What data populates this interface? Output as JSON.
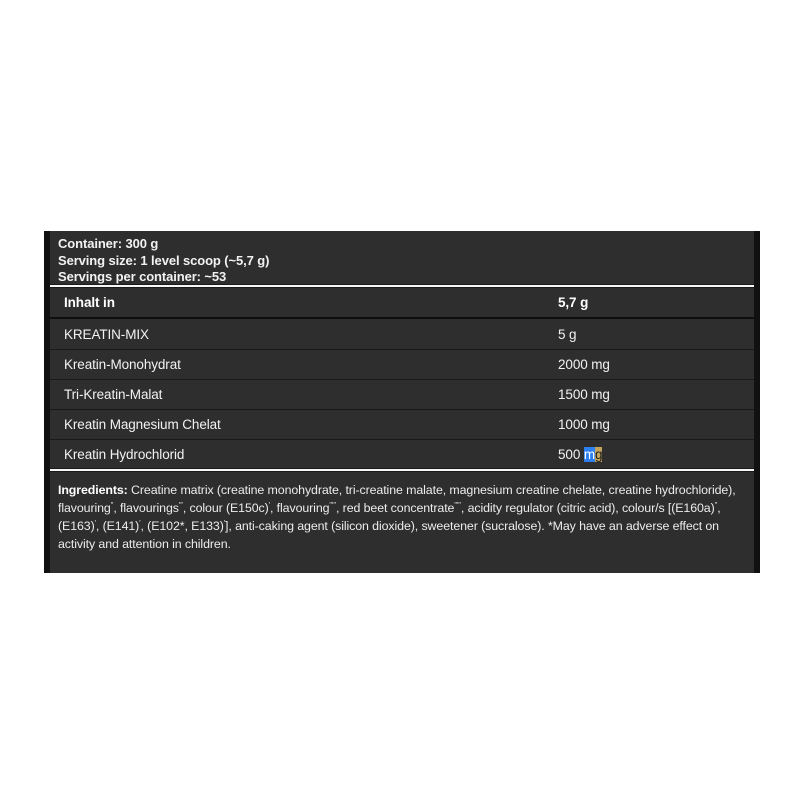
{
  "page": {
    "background": "#ffffff"
  },
  "label": {
    "colors": {
      "background": "#2e2e2e",
      "border": "#111111",
      "divider": "#f7f7f7",
      "text": "#f2f2f2",
      "selection_bg": "#2e80f0",
      "selection_fg": "#ffffff",
      "match_bg": "#c2a35c",
      "match_fg": "#1c1c1c"
    },
    "info": {
      "container": "Container: 300 g",
      "serving_size": "Serving size: 1 level scoop (~5,7 g)",
      "servings_per_container": "Servings per container: ~53"
    },
    "table": {
      "header": {
        "name": "Inhalt in",
        "value": "5,7 g"
      },
      "rows": [
        {
          "name": "KREATIN-MIX",
          "value": "5 g"
        },
        {
          "name": "Kreatin-Monohydrat",
          "value": "2000 mg"
        },
        {
          "name": "Tri-Kreatin-Malat",
          "value": "1500 mg"
        },
        {
          "name": "Kreatin Magnesium Chelat",
          "value": "1000 mg"
        },
        {
          "name": "Kreatin Hydrochlorid",
          "value": "500 mg",
          "highlight": {
            "prefix": "500 ",
            "selected_text": "m",
            "match_text": "g"
          }
        }
      ]
    },
    "ingredients": {
      "label": "Ingredients:",
      "segments": [
        {
          "t": " Creatine matrix (creatine monohydrate, tri-creatine malate, magnesium creatine chelate, creatine hydrochloride), flavouring",
          "s": "′′"
        },
        {
          "t": ", flavourings",
          "s": "′′′"
        },
        {
          "t": ", colour (E150c)",
          "s": "′"
        },
        {
          "t": ", flavouring",
          "s": "′′′′′"
        },
        {
          "t": ", red beet concentrate",
          "s": "′′′′′"
        },
        {
          "t": ", acidity regulator (citric acid), colour/s [(E160a)",
          "s": "′′"
        },
        {
          "t": ", (E163)",
          "s": "′"
        },
        {
          "t": ", (E141)",
          "s": "′"
        },
        {
          "t": ", (E102*, E133)",
          "s": "′"
        },
        {
          "t": "], anti-caking agent (silicon dioxide), sweetener (sucralose). *May have an adverse effect on activity and attention in children.",
          "s": ""
        }
      ]
    }
  }
}
